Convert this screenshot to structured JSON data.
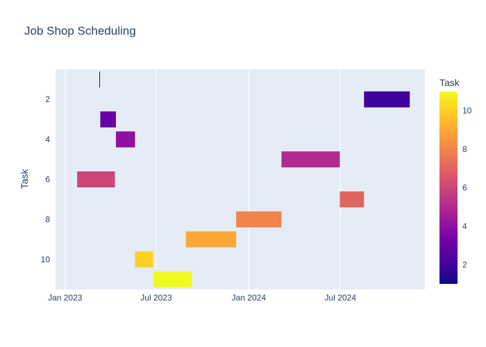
{
  "chart_data": {
    "type": "gantt",
    "title": "Job Shop Scheduling",
    "xlabel": "",
    "ylabel": "Task",
    "x_ticks": [
      "Jan 2023",
      "Jul 2023",
      "Jan 2024",
      "Jul 2024"
    ],
    "y_ticks": [
      "2",
      "4",
      "6",
      "8",
      "10"
    ],
    "y_range": [
      11.5,
      0.5
    ],
    "colorbar": {
      "title": "Task",
      "min": 1,
      "max": 11,
      "ticks": [
        "2",
        "4",
        "6",
        "8",
        "10"
      ]
    },
    "colorscale": [
      "#0d0887",
      "#46039f",
      "#7201a8",
      "#9c179e",
      "#bd3786",
      "#d8576b",
      "#ed7953",
      "#fb9f3a",
      "#fdca26",
      "#f0f921"
    ],
    "tasks": [
      {
        "task": 1,
        "start": "2023-03-10",
        "end": "2023-03-11"
      },
      {
        "task": 2,
        "start": "2024-08-17",
        "end": "2024-11-16"
      },
      {
        "task": 3,
        "start": "2023-03-12",
        "end": "2023-04-12"
      },
      {
        "task": 4,
        "start": "2023-04-12",
        "end": "2023-05-20"
      },
      {
        "task": 5,
        "start": "2024-03-06",
        "end": "2024-06-30"
      },
      {
        "task": 6,
        "start": "2023-01-25",
        "end": "2023-04-10"
      },
      {
        "task": 7,
        "start": "2024-06-30",
        "end": "2024-08-17"
      },
      {
        "task": 8,
        "start": "2023-12-07",
        "end": "2024-03-06"
      },
      {
        "task": 9,
        "start": "2023-08-29",
        "end": "2023-12-07"
      },
      {
        "task": 10,
        "start": "2023-05-20",
        "end": "2023-06-25"
      },
      {
        "task": 11,
        "start": "2023-06-25",
        "end": "2023-09-10"
      }
    ]
  }
}
